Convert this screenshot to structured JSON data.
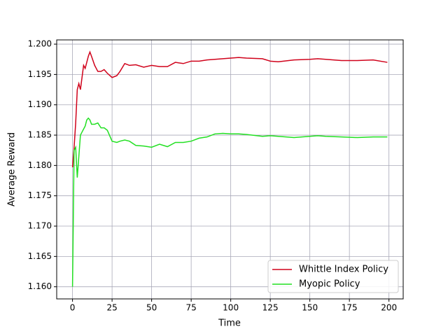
{
  "chart_data": {
    "type": "line",
    "x_label": "Time",
    "y_label": "Average Reward",
    "x": [
      0,
      1,
      2,
      3,
      4,
      5,
      6,
      7,
      8,
      9,
      10,
      11,
      12,
      14,
      16,
      18,
      20,
      22,
      25,
      28,
      30,
      33,
      36,
      40,
      45,
      50,
      55,
      60,
      65,
      70,
      75,
      80,
      85,
      90,
      95,
      100,
      105,
      110,
      120,
      125,
      130,
      140,
      150,
      155,
      160,
      170,
      180,
      190,
      199
    ],
    "series": [
      {
        "name": "Whittle Index Policy",
        "color": "#d0021b",
        "values": [
          1.1797,
          1.183,
          1.187,
          1.1925,
          1.1935,
          1.1925,
          1.1945,
          1.1965,
          1.196,
          1.197,
          1.198,
          1.1987,
          1.198,
          1.1965,
          1.1955,
          1.1955,
          1.1958,
          1.1952,
          1.1945,
          1.1948,
          1.1955,
          1.1968,
          1.1965,
          1.1966,
          1.1962,
          1.1965,
          1.1963,
          1.1963,
          1.197,
          1.1968,
          1.1972,
          1.1972,
          1.1974,
          1.1975,
          1.1976,
          1.1977,
          1.1978,
          1.1977,
          1.1976,
          1.1972,
          1.1971,
          1.1974,
          1.1975,
          1.1976,
          1.1975,
          1.1973,
          1.1973,
          1.1974,
          1.197
        ]
      },
      {
        "name": "Myopic Policy",
        "color": "#22e022",
        "values": [
          1.16,
          1.1825,
          1.183,
          1.178,
          1.1815,
          1.185,
          1.1855,
          1.186,
          1.1865,
          1.1875,
          1.1878,
          1.1875,
          1.1868,
          1.1868,
          1.187,
          1.1862,
          1.1862,
          1.1858,
          1.184,
          1.1838,
          1.184,
          1.1842,
          1.184,
          1.1833,
          1.1832,
          1.183,
          1.1835,
          1.1831,
          1.1838,
          1.1838,
          1.184,
          1.1845,
          1.1847,
          1.1852,
          1.1853,
          1.1852,
          1.1852,
          1.1851,
          1.1848,
          1.1849,
          1.1848,
          1.1846,
          1.1848,
          1.1849,
          1.1848,
          1.1847,
          1.1846,
          1.1847,
          1.1847
        ]
      }
    ],
    "xlim": [
      -10,
      209
    ],
    "ylim": [
      1.158,
      1.2007
    ],
    "xticks": [
      0,
      25,
      50,
      75,
      100,
      125,
      150,
      175,
      200
    ],
    "yticks": [
      {
        "value": 1.16,
        "label": "1.160"
      },
      1.165,
      {
        "value": 1.17,
        "label": "1.170"
      },
      1.175,
      {
        "value": 1.18,
        "label": "1.180"
      },
      1.185,
      {
        "value": 1.19,
        "label": "1.190"
      },
      1.195,
      {
        "value": 1.2,
        "label": "1.200"
      }
    ],
    "grid": true,
    "legend": "lower right"
  }
}
